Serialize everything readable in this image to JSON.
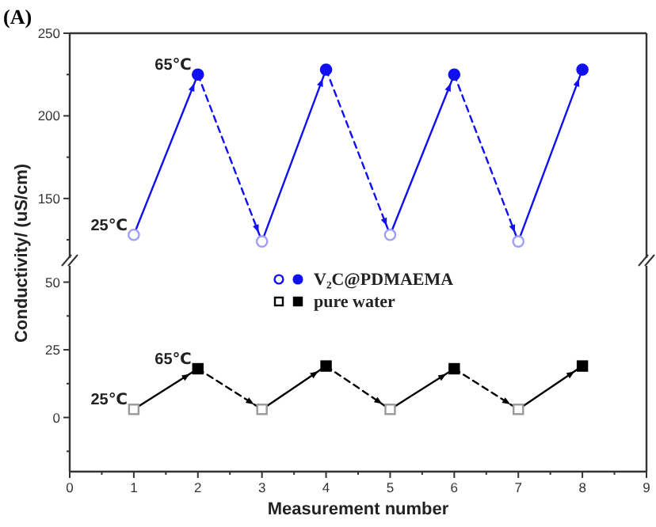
{
  "chart_data": [
    {
      "type": "line",
      "title": "(A)",
      "ylabel": "Conductivity/ (uS/cm)",
      "x": [
        1,
        2,
        3,
        4,
        5,
        6,
        7,
        8
      ],
      "series": [
        {
          "color": "#1010f0",
          "marker": "circle",
          "values": [
            128,
            225,
            124,
            228,
            128,
            225,
            124,
            228
          ]
        }
      ],
      "annotations": [
        "65℃",
        "25℃"
      ],
      "xlim": [
        0,
        9
      ],
      "ylim": [
        114,
        250
      ],
      "yticks": [
        150,
        200,
        250
      ],
      "tick_labels": "y",
      "grid": false,
      "legend": false
    },
    {
      "type": "line",
      "xlabel": "Measurement number",
      "x": [
        1,
        2,
        3,
        4,
        5,
        6,
        7,
        8
      ],
      "series": [
        {
          "name": "V₂C@PDMAEMA",
          "color": "#1010f0",
          "marker": "circle",
          "values": [
            null,
            null,
            null,
            null,
            null,
            null,
            null,
            null
          ]
        },
        {
          "name": "pure water",
          "color": "#000000",
          "marker": "square",
          "values": [
            3,
            18,
            3,
            19,
            3,
            18,
            3,
            19
          ]
        }
      ],
      "annotations": [
        "65℃",
        "25℃"
      ],
      "xlim": [
        0,
        9
      ],
      "xticks": [
        0,
        1,
        2,
        3,
        4,
        5,
        6,
        7,
        8,
        9
      ],
      "ylim": [
        -20,
        56
      ],
      "yticks": [
        0,
        25,
        50
      ],
      "grid": false,
      "legend": "top"
    }
  ]
}
